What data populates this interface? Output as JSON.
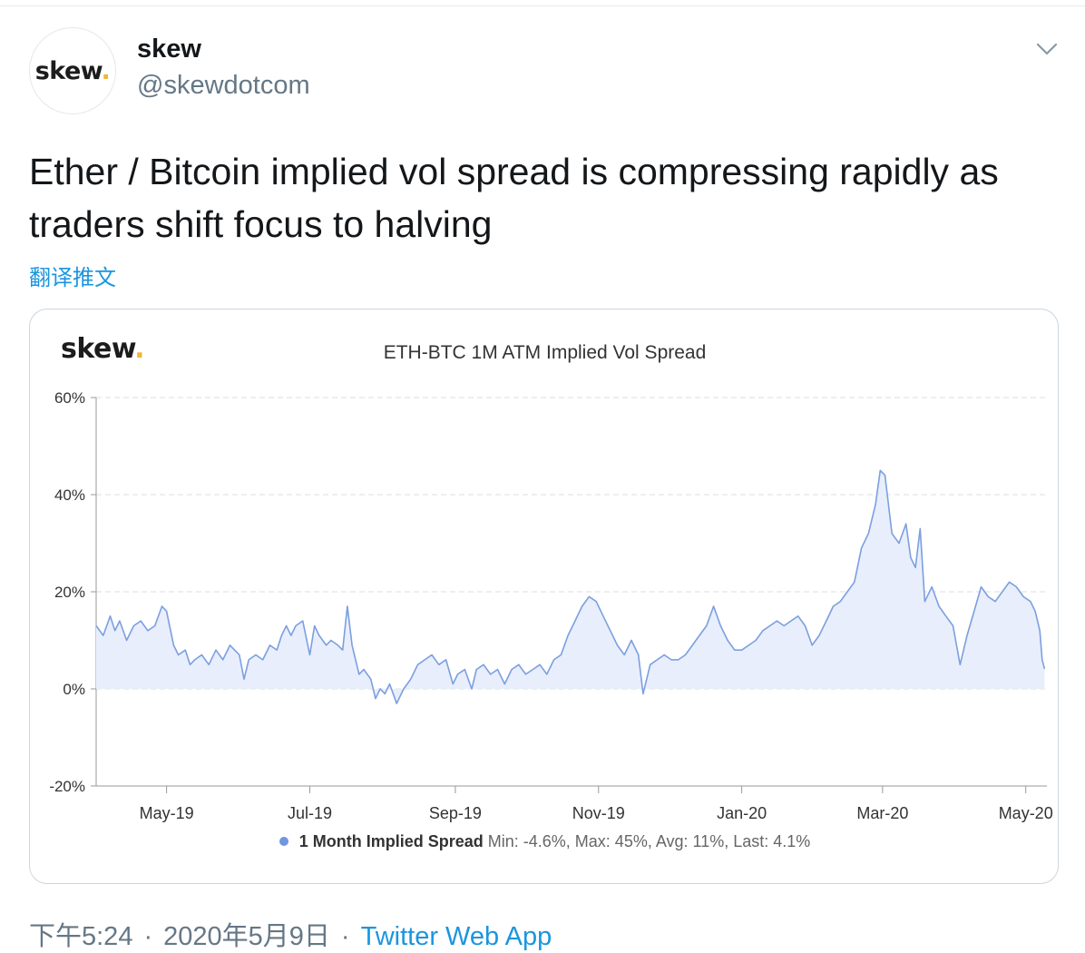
{
  "tweet": {
    "user_name": "skew",
    "handle": "@skewdotcom",
    "avatar_logo": "skew",
    "text": "Ether / Bitcoin implied vol spread is compressing rapidly as traders shift focus to halving",
    "translate_label": "翻译推文",
    "time": "下午5:24",
    "date": "2020年5月9日",
    "separator": "·",
    "source": "Twitter Web App",
    "menu_icon": "chevron-down-icon"
  },
  "colors": {
    "line": "#7b9fe0",
    "fill": "#e8eefb",
    "legend_dot": "#6f95e3",
    "logo_dot": "#f2b53b",
    "link": "#1b95e0"
  },
  "chart_data": {
    "type": "area",
    "logo": "skew",
    "title": "ETH-BTC 1M ATM Implied Vol Spread",
    "y_unit": "%",
    "ylim": [
      -20,
      60
    ],
    "y_ticks": [
      -20,
      0,
      20,
      40,
      60
    ],
    "y_tick_labels": [
      "-20%",
      "0%",
      "20%",
      "40%",
      "60%"
    ],
    "xlim": [
      "2019-04-01",
      "2020-05-10"
    ],
    "x_ticks": [
      "2019-05-01",
      "2019-07-01",
      "2019-09-01",
      "2019-11-01",
      "2020-01-01",
      "2020-03-01",
      "2020-05-01"
    ],
    "x_tick_labels": [
      "May-19",
      "Jul-19",
      "Sep-19",
      "Nov-19",
      "Jan-20",
      "Mar-20",
      "May-20"
    ],
    "grid": "horizontal dashed",
    "legend_position": "bottom",
    "series": [
      {
        "name": "1 Month Implied Spread",
        "stats": "Min: -4.6%, Max: 45%, Avg: 11%, Last: 4.1%",
        "points": [
          [
            "2019-04-01",
            13
          ],
          [
            "2019-04-04",
            11
          ],
          [
            "2019-04-07",
            15
          ],
          [
            "2019-04-09",
            12
          ],
          [
            "2019-04-11",
            14
          ],
          [
            "2019-04-14",
            10
          ],
          [
            "2019-04-17",
            13
          ],
          [
            "2019-04-20",
            14
          ],
          [
            "2019-04-23",
            12
          ],
          [
            "2019-04-26",
            13
          ],
          [
            "2019-04-29",
            17
          ],
          [
            "2019-05-01",
            16
          ],
          [
            "2019-05-04",
            9
          ],
          [
            "2019-05-06",
            7
          ],
          [
            "2019-05-09",
            8
          ],
          [
            "2019-05-11",
            5
          ],
          [
            "2019-05-13",
            6
          ],
          [
            "2019-05-16",
            7
          ],
          [
            "2019-05-19",
            5
          ],
          [
            "2019-05-22",
            8
          ],
          [
            "2019-05-25",
            6
          ],
          [
            "2019-05-28",
            9
          ],
          [
            "2019-06-01",
            7
          ],
          [
            "2019-06-03",
            2
          ],
          [
            "2019-06-05",
            6
          ],
          [
            "2019-06-08",
            7
          ],
          [
            "2019-06-11",
            6
          ],
          [
            "2019-06-14",
            9
          ],
          [
            "2019-06-17",
            8
          ],
          [
            "2019-06-19",
            11
          ],
          [
            "2019-06-21",
            13
          ],
          [
            "2019-06-23",
            11
          ],
          [
            "2019-06-25",
            13
          ],
          [
            "2019-06-28",
            14
          ],
          [
            "2019-07-01",
            7
          ],
          [
            "2019-07-03",
            13
          ],
          [
            "2019-07-05",
            11
          ],
          [
            "2019-07-08",
            9
          ],
          [
            "2019-07-10",
            10
          ],
          [
            "2019-07-13",
            9
          ],
          [
            "2019-07-15",
            8
          ],
          [
            "2019-07-17",
            17
          ],
          [
            "2019-07-19",
            9
          ],
          [
            "2019-07-22",
            3
          ],
          [
            "2019-07-24",
            4
          ],
          [
            "2019-07-27",
            2
          ],
          [
            "2019-07-29",
            -2
          ],
          [
            "2019-07-31",
            0
          ],
          [
            "2019-08-02",
            -1
          ],
          [
            "2019-08-04",
            1
          ],
          [
            "2019-08-07",
            -3
          ],
          [
            "2019-08-10",
            0
          ],
          [
            "2019-08-13",
            2
          ],
          [
            "2019-08-16",
            5
          ],
          [
            "2019-08-19",
            6
          ],
          [
            "2019-08-22",
            7
          ],
          [
            "2019-08-25",
            5
          ],
          [
            "2019-08-28",
            6
          ],
          [
            "2019-08-31",
            1
          ],
          [
            "2019-09-02",
            3
          ],
          [
            "2019-09-05",
            4
          ],
          [
            "2019-09-08",
            0
          ],
          [
            "2019-09-10",
            4
          ],
          [
            "2019-09-13",
            5
          ],
          [
            "2019-09-16",
            3
          ],
          [
            "2019-09-19",
            4
          ],
          [
            "2019-09-22",
            1
          ],
          [
            "2019-09-25",
            4
          ],
          [
            "2019-09-28",
            5
          ],
          [
            "2019-10-01",
            3
          ],
          [
            "2019-10-04",
            4
          ],
          [
            "2019-10-07",
            5
          ],
          [
            "2019-10-10",
            3
          ],
          [
            "2019-10-13",
            6
          ],
          [
            "2019-10-16",
            7
          ],
          [
            "2019-10-19",
            11
          ],
          [
            "2019-10-22",
            14
          ],
          [
            "2019-10-25",
            17
          ],
          [
            "2019-10-28",
            19
          ],
          [
            "2019-10-31",
            18
          ],
          [
            "2019-11-03",
            15
          ],
          [
            "2019-11-06",
            12
          ],
          [
            "2019-11-09",
            9
          ],
          [
            "2019-11-12",
            7
          ],
          [
            "2019-11-15",
            10
          ],
          [
            "2019-11-18",
            7
          ],
          [
            "2019-11-20",
            -1
          ],
          [
            "2019-11-23",
            5
          ],
          [
            "2019-11-26",
            6
          ],
          [
            "2019-11-29",
            7
          ],
          [
            "2019-12-02",
            6
          ],
          [
            "2019-12-05",
            6
          ],
          [
            "2019-12-08",
            7
          ],
          [
            "2019-12-11",
            9
          ],
          [
            "2019-12-14",
            11
          ],
          [
            "2019-12-17",
            13
          ],
          [
            "2019-12-20",
            17
          ],
          [
            "2019-12-23",
            13
          ],
          [
            "2019-12-26",
            10
          ],
          [
            "2019-12-29",
            8
          ],
          [
            "2020-01-01",
            8
          ],
          [
            "2020-01-04",
            9
          ],
          [
            "2020-01-07",
            10
          ],
          [
            "2020-01-10",
            12
          ],
          [
            "2020-01-13",
            13
          ],
          [
            "2020-01-16",
            14
          ],
          [
            "2020-01-19",
            13
          ],
          [
            "2020-01-22",
            14
          ],
          [
            "2020-01-25",
            15
          ],
          [
            "2020-01-28",
            13
          ],
          [
            "2020-01-31",
            9
          ],
          [
            "2020-02-03",
            11
          ],
          [
            "2020-02-06",
            14
          ],
          [
            "2020-02-09",
            17
          ],
          [
            "2020-02-12",
            18
          ],
          [
            "2020-02-15",
            20
          ],
          [
            "2020-02-18",
            22
          ],
          [
            "2020-02-21",
            29
          ],
          [
            "2020-02-24",
            32
          ],
          [
            "2020-02-27",
            38
          ],
          [
            "2020-02-29",
            45
          ],
          [
            "2020-03-02",
            44
          ],
          [
            "2020-03-05",
            32
          ],
          [
            "2020-03-08",
            30
          ],
          [
            "2020-03-11",
            34
          ],
          [
            "2020-03-13",
            27
          ],
          [
            "2020-03-15",
            25
          ],
          [
            "2020-03-17",
            33
          ],
          [
            "2020-03-19",
            18
          ],
          [
            "2020-03-22",
            21
          ],
          [
            "2020-03-25",
            17
          ],
          [
            "2020-03-28",
            15
          ],
          [
            "2020-03-31",
            13
          ],
          [
            "2020-04-03",
            5
          ],
          [
            "2020-04-06",
            11
          ],
          [
            "2020-04-09",
            16
          ],
          [
            "2020-04-12",
            21
          ],
          [
            "2020-04-15",
            19
          ],
          [
            "2020-04-18",
            18
          ],
          [
            "2020-04-21",
            20
          ],
          [
            "2020-04-24",
            22
          ],
          [
            "2020-04-27",
            21
          ],
          [
            "2020-04-30",
            19
          ],
          [
            "2020-05-03",
            18
          ],
          [
            "2020-05-05",
            16
          ],
          [
            "2020-05-07",
            12
          ],
          [
            "2020-05-08",
            6
          ],
          [
            "2020-05-09",
            4.1
          ]
        ]
      }
    ]
  }
}
